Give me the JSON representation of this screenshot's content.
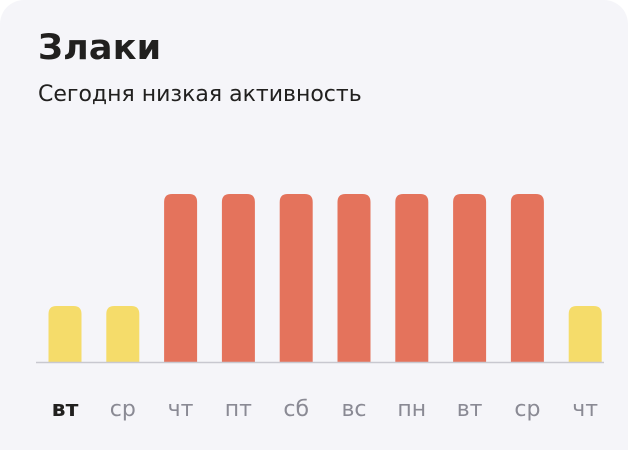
{
  "card": {
    "title": "Злаки",
    "subtitle": "Сегодня низкая активность"
  },
  "colors": {
    "background": "#f5f5f9",
    "low": "#f5dc6a",
    "high": "#e4735c",
    "baseline": "#c8c8d0",
    "label_active": "#21201f",
    "label_inactive": "#8a8a94"
  },
  "chart_data": {
    "type": "bar",
    "title": "",
    "xlabel": "",
    "ylabel": "",
    "categories": [
      "вт",
      "ср",
      "чт",
      "пт",
      "сб",
      "вс",
      "пн",
      "вт",
      "ср",
      "чт"
    ],
    "values": [
      1,
      1,
      3,
      3,
      3,
      3,
      3,
      3,
      3,
      1
    ],
    "levels": [
      "low",
      "low",
      "high",
      "high",
      "high",
      "high",
      "high",
      "high",
      "high",
      "low"
    ],
    "active_index": 0,
    "ylim": [
      0,
      3
    ],
    "grid": false,
    "legend": "none"
  }
}
